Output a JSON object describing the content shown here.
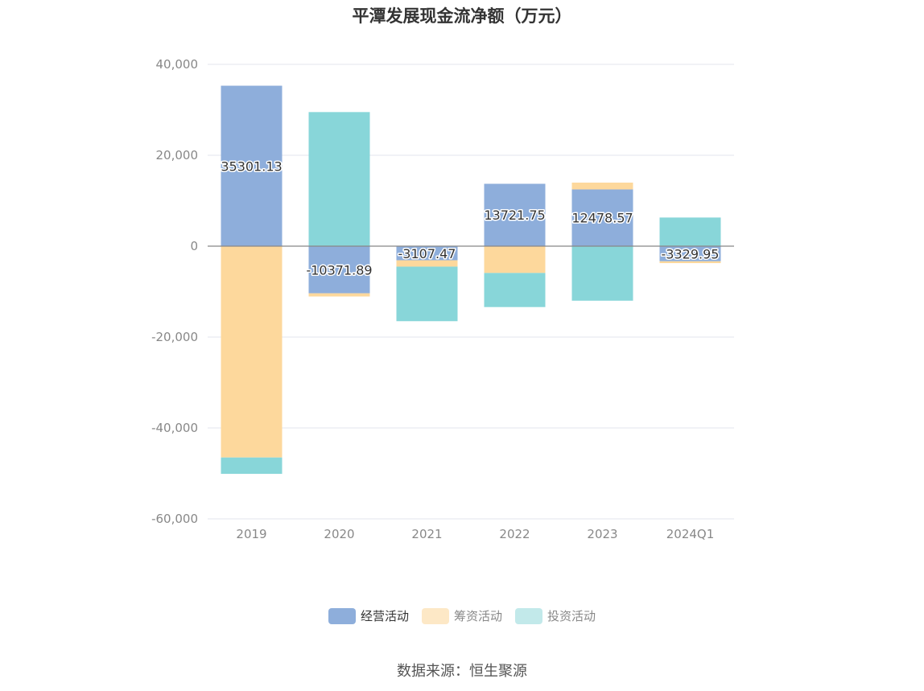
{
  "chart_data": {
    "type": "bar",
    "stacked": true,
    "title": "平潭发展现金流净额（万元）",
    "categories": [
      "2019",
      "2020",
      "2021",
      "2022",
      "2023",
      "2024Q1"
    ],
    "series": [
      {
        "name": "经营活动",
        "color": "#8eaedb",
        "values": [
          35301.13,
          -10371.89,
          -3107.47,
          13721.75,
          12478.57,
          -3329.95
        ]
      },
      {
        "name": "筹资活动",
        "color": "#fdd89c",
        "values": [
          -46500,
          -700,
          -1400,
          -5900,
          1500,
          -400
        ]
      },
      {
        "name": "投资活动",
        "color": "#88d6d9",
        "values": [
          -3600,
          29500,
          -12000,
          -7500,
          -12000,
          6300
        ]
      }
    ],
    "data_labels": [
      "35301.13",
      "-10371.89",
      "-3107.47",
      "13721.75",
      "12478.57",
      "-3329.95"
    ],
    "y_ticks": [
      "40,000",
      "20,000",
      "0",
      "-20,000",
      "-40,000",
      "-60,000"
    ],
    "ylim": [
      -60000,
      40000
    ],
    "grid": true,
    "legend_position": "bottom-center",
    "legend_text_colors": [
      "#333333",
      "#888888",
      "#888888"
    ],
    "legend_swatch_colors": [
      "#8eaedb",
      "#fde8c6",
      "#c2e9ea"
    ],
    "source": "数据来源：恒生聚源"
  }
}
